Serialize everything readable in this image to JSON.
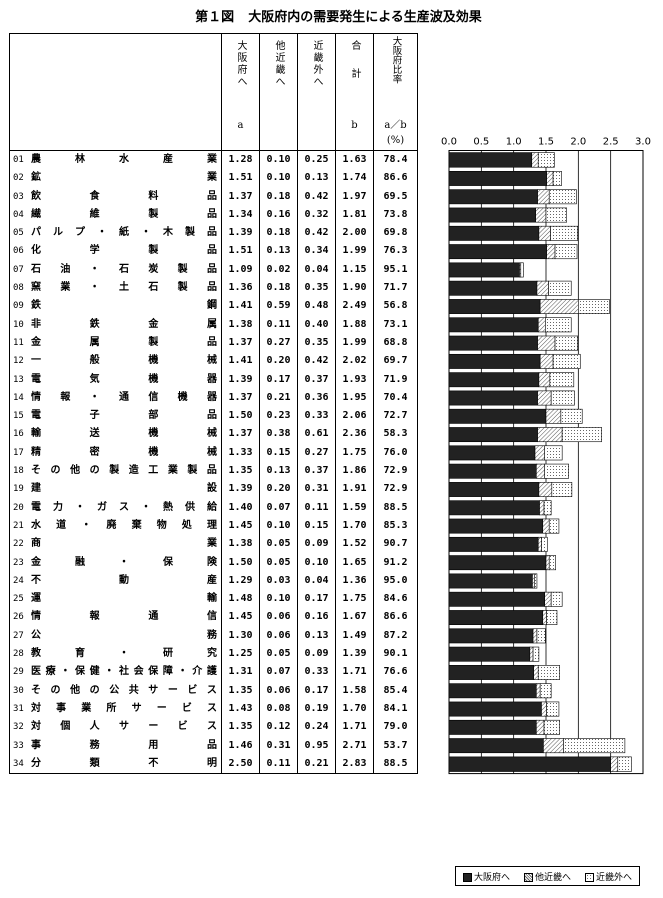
{
  "title": {
    "fig": "第１図",
    "text": "大阪府内の需要発生による生産波及効果"
  },
  "headers": {
    "osaka": {
      "label": "大阪府へ",
      "sub": "a"
    },
    "kinki": {
      "label": "他近畿へ",
      "sub": ""
    },
    "outside": {
      "label": "近畿外へ",
      "sub": ""
    },
    "total": {
      "label": "合計",
      "sub": "b"
    },
    "ratio": {
      "label": "大阪府比率",
      "sub": "a／b",
      "unit": "(%)"
    }
  },
  "rows": [
    {
      "code": "01",
      "name": "農林水産業",
      "osaka": "1.28",
      "kinki": "0.10",
      "outside": "0.25",
      "total": "1.63",
      "ratio": "78.4"
    },
    {
      "code": "02",
      "name": "鉱業",
      "osaka": "1.51",
      "kinki": "0.10",
      "outside": "0.13",
      "total": "1.74",
      "ratio": "86.6"
    },
    {
      "code": "03",
      "name": "飲食料品",
      "osaka": "1.37",
      "kinki": "0.18",
      "outside": "0.42",
      "total": "1.97",
      "ratio": "69.5"
    },
    {
      "code": "04",
      "name": "繊維製品",
      "osaka": "1.34",
      "kinki": "0.16",
      "outside": "0.32",
      "total": "1.81",
      "ratio": "73.8"
    },
    {
      "code": "05",
      "name": "パルプ・紙・木製品",
      "osaka": "1.39",
      "kinki": "0.18",
      "outside": "0.42",
      "total": "2.00",
      "ratio": "69.8"
    },
    {
      "code": "06",
      "name": "化学製品",
      "osaka": "1.51",
      "kinki": "0.13",
      "outside": "0.34",
      "total": "1.99",
      "ratio": "76.3"
    },
    {
      "code": "07",
      "name": "石油・石炭製品",
      "osaka": "1.09",
      "kinki": "0.02",
      "outside": "0.04",
      "total": "1.15",
      "ratio": "95.1"
    },
    {
      "code": "08",
      "name": "窯業・土石製品",
      "osaka": "1.36",
      "kinki": "0.18",
      "outside": "0.35",
      "total": "1.90",
      "ratio": "71.7"
    },
    {
      "code": "09",
      "name": "鉄鋼",
      "osaka": "1.41",
      "kinki": "0.59",
      "outside": "0.48",
      "total": "2.49",
      "ratio": "56.8"
    },
    {
      "code": "10",
      "name": "非鉄金属",
      "osaka": "1.38",
      "kinki": "0.11",
      "outside": "0.40",
      "total": "1.88",
      "ratio": "73.1"
    },
    {
      "code": "11",
      "name": "金属製品",
      "osaka": "1.37",
      "kinki": "0.27",
      "outside": "0.35",
      "total": "1.99",
      "ratio": "68.8"
    },
    {
      "code": "12",
      "name": "一般機械",
      "osaka": "1.41",
      "kinki": "0.20",
      "outside": "0.42",
      "total": "2.02",
      "ratio": "69.7"
    },
    {
      "code": "13",
      "name": "電気機器",
      "osaka": "1.39",
      "kinki": "0.17",
      "outside": "0.37",
      "total": "1.93",
      "ratio": "71.9"
    },
    {
      "code": "14",
      "name": "情報・通信機器",
      "osaka": "1.37",
      "kinki": "0.21",
      "outside": "0.36",
      "total": "1.95",
      "ratio": "70.4"
    },
    {
      "code": "15",
      "name": "電子部品",
      "osaka": "1.50",
      "kinki": "0.23",
      "outside": "0.33",
      "total": "2.06",
      "ratio": "72.7"
    },
    {
      "code": "16",
      "name": "輸送機械",
      "osaka": "1.37",
      "kinki": "0.38",
      "outside": "0.61",
      "total": "2.36",
      "ratio": "58.3"
    },
    {
      "code": "17",
      "name": "精密機械",
      "osaka": "1.33",
      "kinki": "0.15",
      "outside": "0.27",
      "total": "1.75",
      "ratio": "76.0"
    },
    {
      "code": "18",
      "name": "その他の製造工業製品",
      "osaka": "1.35",
      "kinki": "0.13",
      "outside": "0.37",
      "total": "1.86",
      "ratio": "72.9"
    },
    {
      "code": "19",
      "name": "建設",
      "osaka": "1.39",
      "kinki": "0.20",
      "outside": "0.31",
      "total": "1.91",
      "ratio": "72.9"
    },
    {
      "code": "20",
      "name": "電力・ガス・熱供給",
      "osaka": "1.40",
      "kinki": "0.07",
      "outside": "0.11",
      "total": "1.59",
      "ratio": "88.5"
    },
    {
      "code": "21",
      "name": "水道・廃棄物処理",
      "osaka": "1.45",
      "kinki": "0.10",
      "outside": "0.15",
      "total": "1.70",
      "ratio": "85.3"
    },
    {
      "code": "22",
      "name": "商業",
      "osaka": "1.38",
      "kinki": "0.05",
      "outside": "0.09",
      "total": "1.52",
      "ratio": "90.7"
    },
    {
      "code": "23",
      "name": "金融・保険",
      "osaka": "1.50",
      "kinki": "0.05",
      "outside": "0.10",
      "total": "1.65",
      "ratio": "91.2"
    },
    {
      "code": "24",
      "name": "不動産",
      "osaka": "1.29",
      "kinki": "0.03",
      "outside": "0.04",
      "total": "1.36",
      "ratio": "95.0"
    },
    {
      "code": "25",
      "name": "運輸",
      "osaka": "1.48",
      "kinki": "0.10",
      "outside": "0.17",
      "total": "1.75",
      "ratio": "84.6"
    },
    {
      "code": "26",
      "name": "情報通信",
      "osaka": "1.45",
      "kinki": "0.06",
      "outside": "0.16",
      "total": "1.67",
      "ratio": "86.6"
    },
    {
      "code": "27",
      "name": "公務",
      "osaka": "1.30",
      "kinki": "0.06",
      "outside": "0.13",
      "total": "1.49",
      "ratio": "87.2"
    },
    {
      "code": "28",
      "name": "教育・研究",
      "osaka": "1.25",
      "kinki": "0.05",
      "outside": "0.09",
      "total": "1.39",
      "ratio": "90.1"
    },
    {
      "code": "29",
      "name": "医療・保健・社会保障・介護",
      "osaka": "1.31",
      "kinki": "0.07",
      "outside": "0.33",
      "total": "1.71",
      "ratio": "76.6"
    },
    {
      "code": "30",
      "name": "その他の公共サービス",
      "osaka": "1.35",
      "kinki": "0.06",
      "outside": "0.17",
      "total": "1.58",
      "ratio": "85.4"
    },
    {
      "code": "31",
      "name": "対事業所サービス",
      "osaka": "1.43",
      "kinki": "0.08",
      "outside": "0.19",
      "total": "1.70",
      "ratio": "84.1"
    },
    {
      "code": "32",
      "name": "対個人サービス",
      "osaka": "1.35",
      "kinki": "0.12",
      "outside": "0.24",
      "total": "1.71",
      "ratio": "79.0"
    },
    {
      "code": "33",
      "name": "事務用品",
      "osaka": "1.46",
      "kinki": "0.31",
      "outside": "0.95",
      "total": "2.71",
      "ratio": "53.7"
    },
    {
      "code": "34",
      "name": "分類不明",
      "osaka": "2.50",
      "kinki": "0.11",
      "outside": "0.21",
      "total": "2.83",
      "ratio": "88.5"
    }
  ],
  "chart_data": {
    "type": "bar",
    "orientation": "horizontal",
    "stacked": true,
    "xlim": [
      0,
      3.0
    ],
    "ticks": [
      "0.0",
      "0.5",
      "1.0",
      "1.5",
      "2.0",
      "2.5",
      "3.0"
    ],
    "tick_values": [
      0,
      0.5,
      1.0,
      1.5,
      2.0,
      2.5,
      3.0
    ],
    "grid": true,
    "legend_position": "bottom-right",
    "series": [
      {
        "name": "大阪府へ",
        "color": "#222222",
        "pattern": "solid",
        "values": [
          1.28,
          1.51,
          1.37,
          1.34,
          1.39,
          1.51,
          1.09,
          1.36,
          1.41,
          1.38,
          1.37,
          1.41,
          1.39,
          1.37,
          1.5,
          1.37,
          1.33,
          1.35,
          1.39,
          1.4,
          1.45,
          1.38,
          1.5,
          1.29,
          1.48,
          1.45,
          1.3,
          1.25,
          1.31,
          1.35,
          1.43,
          1.35,
          1.46,
          2.5
        ]
      },
      {
        "name": "他近畿へ",
        "color": "#ffffff",
        "pattern": "hatch",
        "values": [
          0.1,
          0.1,
          0.18,
          0.16,
          0.18,
          0.13,
          0.02,
          0.18,
          0.59,
          0.11,
          0.27,
          0.2,
          0.17,
          0.21,
          0.23,
          0.38,
          0.15,
          0.13,
          0.2,
          0.07,
          0.1,
          0.05,
          0.05,
          0.03,
          0.1,
          0.06,
          0.06,
          0.05,
          0.07,
          0.06,
          0.08,
          0.12,
          0.31,
          0.11
        ]
      },
      {
        "name": "近畿外へ",
        "color": "#ffffff",
        "pattern": "dots",
        "values": [
          0.25,
          0.13,
          0.42,
          0.32,
          0.42,
          0.34,
          0.04,
          0.35,
          0.48,
          0.4,
          0.35,
          0.42,
          0.37,
          0.36,
          0.33,
          0.61,
          0.27,
          0.37,
          0.31,
          0.11,
          0.15,
          0.09,
          0.1,
          0.04,
          0.17,
          0.16,
          0.13,
          0.09,
          0.33,
          0.17,
          0.19,
          0.24,
          0.95,
          0.21
        ]
      }
    ]
  }
}
